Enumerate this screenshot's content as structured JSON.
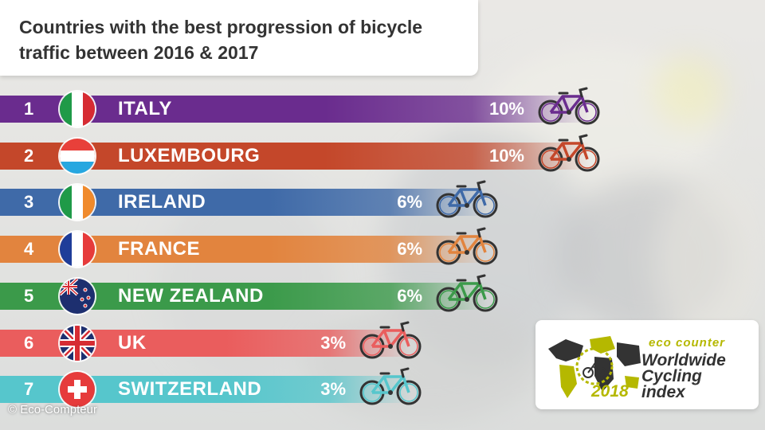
{
  "title": "Countries with the best progression of bicycle traffic between 2016 & 2017",
  "credit": "© Eco-Compteur",
  "logo": {
    "brand": "eco counter",
    "line1": "Worldwide",
    "line2": "Cycling",
    "line3": "index",
    "year": "2018"
  },
  "chart_data": {
    "type": "bar",
    "orientation": "horizontal",
    "title": "Countries with the best progression of bicycle traffic between 2016 & 2017",
    "unit": "%",
    "categories": [
      "ITALY",
      "LUXEMBOURG",
      "IRELAND",
      "FRANCE",
      "NEW ZEALAND",
      "UK",
      "SWITZERLAND"
    ],
    "ranks": [
      "1",
      "2",
      "3",
      "4",
      "5",
      "6",
      "7"
    ],
    "values": [
      10,
      10,
      6,
      6,
      6,
      3,
      3
    ],
    "labels": [
      "10%",
      "10%",
      "6%",
      "6%",
      "6%",
      "3%",
      "3%"
    ],
    "colors": [
      "#6a2c8e",
      "#c4472a",
      "#3f6aa8",
      "#e2843e",
      "#3b9a4a",
      "#ea5d5d",
      "#56c6cc"
    ],
    "flags": [
      "italy-flag",
      "luxembourg-flag",
      "ireland-flag",
      "france-flag",
      "new-zealand-flag",
      "uk-flag",
      "switzerland-flag"
    ],
    "icons": [
      "bicycle-icon",
      "bicycle-icon",
      "bicycle-icon",
      "bicycle-icon",
      "bicycle-icon",
      "bicycle-icon",
      "bicycle-icon"
    ],
    "xlim": [
      0,
      10
    ]
  }
}
